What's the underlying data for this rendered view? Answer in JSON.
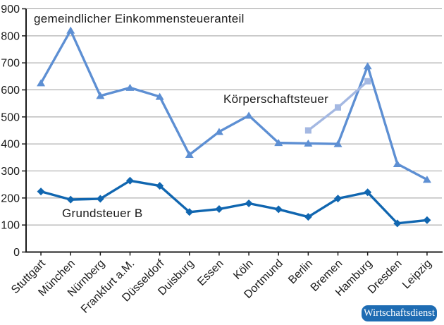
{
  "chart_labels": {
    "einkommensteueranteil": "gemeindlicher Einkommensteueranteil",
    "koerperschaftsteuer": "Körperschaftsteuer",
    "grundsteuer_b": "Grundsteuer B"
  },
  "badge": {
    "label": "Wirtschaftsdienst",
    "background": "#1e6cb3",
    "text_color": "#ffffff"
  },
  "colors": {
    "einkommensteueranteil_line": "#5d8fd3",
    "koerperschaftsteuer_line": "#a4b8e2",
    "grundsteuer_line": "#1066b0",
    "gridline": "#9c9c9c",
    "axis": "#1a1a1a",
    "tick_text": "#1a1a1a"
  },
  "chart_data": {
    "type": "line",
    "categories": [
      "Stuttgart",
      "München",
      "Nürnberg",
      "Frankfurt a.M.",
      "Düsseldorf",
      "Duisburg",
      "Essen",
      "Köln",
      "Dortmund",
      "Berlin",
      "Bremen",
      "Hamburg",
      "Dresden",
      "Leipzig"
    ],
    "series": [
      {
        "name": "gemeindlicher Einkommensteueranteil",
        "marker": "triangle",
        "color": "#5d8fd3",
        "values": [
          625,
          820,
          578,
          608,
          575,
          360,
          445,
          505,
          404,
          402,
          400,
          688,
          326,
          268
        ]
      },
      {
        "name": "Körperschaftsteuer",
        "marker": "square",
        "color": "#a4b8e2",
        "values": [
          null,
          null,
          null,
          null,
          null,
          null,
          null,
          null,
          null,
          450,
          535,
          632,
          null,
          null
        ]
      },
      {
        "name": "Grundsteuer B",
        "marker": "diamond",
        "color": "#1066b0",
        "values": [
          224,
          194,
          197,
          264,
          245,
          148,
          159,
          180,
          158,
          130,
          198,
          221,
          106,
          118
        ]
      }
    ],
    "ylim": [
      0,
      900
    ],
    "ytick_step": 100,
    "ytick_labels": [
      "0",
      "100",
      "200",
      "300",
      "400",
      "500",
      "600",
      "700",
      "800",
      "900"
    ],
    "grid": true,
    "xlabel": "",
    "ylabel": "",
    "legend_position": "inline-annotations",
    "x_tick_rotation_deg": -45
  }
}
